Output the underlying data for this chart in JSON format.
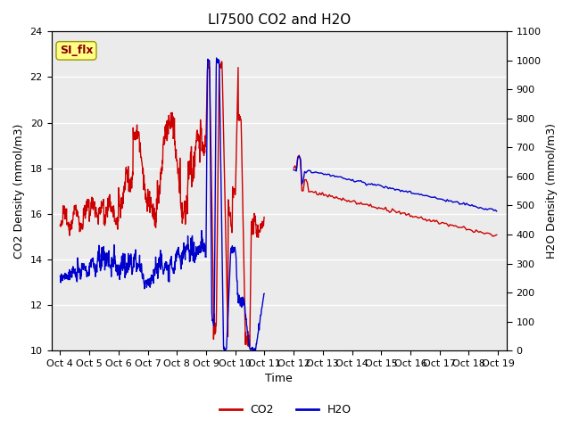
{
  "title": "LI7500 CO2 and H2O",
  "xlabel": "Time",
  "ylabel_left": "CO2 Density (mmol/m3)",
  "ylabel_right": "H2O Density (mmol/m3)",
  "ylim_left": [
    10,
    24
  ],
  "ylim_right": [
    0,
    1100
  ],
  "yticks_left": [
    10,
    12,
    14,
    16,
    18,
    20,
    22,
    24
  ],
  "yticks_right": [
    0,
    100,
    200,
    300,
    400,
    500,
    600,
    700,
    800,
    900,
    1000,
    1100
  ],
  "xtick_labels": [
    "Oct 4",
    "Oct 5",
    "Oct 6",
    "Oct 7",
    "Oct 8",
    "Oct 9",
    "Oct 10",
    "Oct 11",
    "Oct 12",
    "Oct 13",
    "Oct 14",
    "Oct 15",
    "Oct 16",
    "Oct 17",
    "Oct 18",
    "Oct 19"
  ],
  "annotation_text": "SI_flx",
  "co2_color": "#CC0000",
  "h2o_color": "#0000CC",
  "plot_bg_color": "#EBEBEB",
  "grid_color": "white",
  "title_fontsize": 11,
  "label_fontsize": 9,
  "tick_fontsize": 8,
  "linewidth": 1.0
}
